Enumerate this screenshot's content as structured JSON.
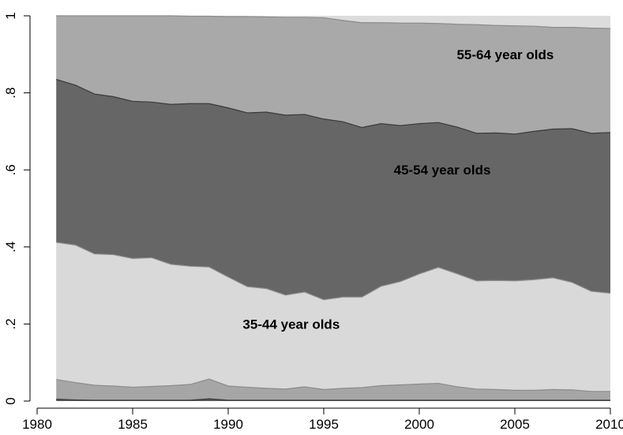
{
  "chart_data": {
    "type": "area",
    "stacked": true,
    "x": [
      1981,
      1982,
      1983,
      1984,
      1985,
      1986,
      1987,
      1988,
      1989,
      1990,
      1991,
      1992,
      1993,
      1994,
      1995,
      1996,
      1997,
      1998,
      1999,
      2000,
      2001,
      2002,
      2003,
      2004,
      2005,
      2006,
      2007,
      2008,
      2009,
      2010
    ],
    "boundaries": {
      "b1": [
        0.005,
        0.003,
        0.002,
        0.002,
        0.002,
        0.002,
        0.002,
        0.002,
        0.006,
        0.002,
        0.002,
        0.002,
        0.002,
        0.002,
        0.002,
        0.002,
        0.002,
        0.002,
        0.002,
        0.002,
        0.002,
        0.002,
        0.002,
        0.002,
        0.002,
        0.002,
        0.002,
        0.002,
        0.002,
        0.002
      ],
      "b2": [
        0.056,
        0.048,
        0.041,
        0.039,
        0.036,
        0.038,
        0.04,
        0.043,
        0.057,
        0.039,
        0.036,
        0.033,
        0.031,
        0.037,
        0.03,
        0.033,
        0.035,
        0.04,
        0.042,
        0.044,
        0.046,
        0.037,
        0.031,
        0.03,
        0.028,
        0.028,
        0.03,
        0.029,
        0.025,
        0.025
      ],
      "b3": [
        0.412,
        0.405,
        0.382,
        0.38,
        0.37,
        0.372,
        0.355,
        0.35,
        0.348,
        0.322,
        0.297,
        0.292,
        0.275,
        0.283,
        0.263,
        0.27,
        0.27,
        0.298,
        0.31,
        0.33,
        0.347,
        0.33,
        0.312,
        0.313,
        0.312,
        0.315,
        0.32,
        0.308,
        0.285,
        0.28
      ],
      "b4": [
        0.835,
        0.82,
        0.797,
        0.79,
        0.778,
        0.776,
        0.77,
        0.772,
        0.772,
        0.761,
        0.748,
        0.75,
        0.742,
        0.744,
        0.732,
        0.725,
        0.71,
        0.72,
        0.715,
        0.72,
        0.723,
        0.711,
        0.695,
        0.696,
        0.693,
        0.7,
        0.706,
        0.707,
        0.695,
        0.697
      ],
      "b5": [
        1.0,
        1.0,
        1.0,
        1.0,
        1.0,
        1.0,
        1.0,
        0.999,
        0.999,
        0.998,
        0.998,
        0.997,
        0.996,
        0.996,
        0.995,
        0.988,
        0.982,
        0.982,
        0.981,
        0.981,
        0.98,
        0.978,
        0.977,
        0.975,
        0.974,
        0.973,
        0.97,
        0.97,
        0.968,
        0.967
      ]
    },
    "series": [
      {
        "lower": "zero",
        "upper": "b1",
        "color": "#555555"
      },
      {
        "lower": "b1",
        "upper": "b2",
        "color": "#a6a6a6"
      },
      {
        "name": "35-44 year olds",
        "lower": "b2",
        "upper": "b3",
        "color": "#d9d9d9",
        "label": {
          "x": 1993.3,
          "y": 0.2
        }
      },
      {
        "name": "45-54 year olds",
        "lower": "b3",
        "upper": "b4",
        "color": "#666666",
        "label": {
          "x": 2001.2,
          "y": 0.6
        }
      },
      {
        "name": "55-64 year olds",
        "lower": "b4",
        "upper": "b5",
        "color": "#a9a9a9",
        "label": {
          "x": 2004.5,
          "y": 0.9
        }
      },
      {
        "lower": "b5",
        "upper": "one",
        "color": "#dcdcdc"
      }
    ],
    "xlim": [
      1980,
      2010
    ],
    "ylim": [
      0,
      1
    ],
    "xticks": [
      1980,
      1985,
      1990,
      1995,
      2000,
      2005,
      2010
    ],
    "yticks": [
      0,
      0.2,
      0.4,
      0.6,
      0.8,
      1
    ],
    "xtick_labels": [
      "1980",
      "1985",
      "1990",
      "1995",
      "2000",
      "2005",
      "2010"
    ],
    "ytick_labels": [
      "0",
      ".2",
      ".4",
      ".6",
      ".8",
      "1"
    ],
    "xlabel": "",
    "ylabel": "",
    "title": "",
    "grid": false,
    "legend": "none"
  }
}
